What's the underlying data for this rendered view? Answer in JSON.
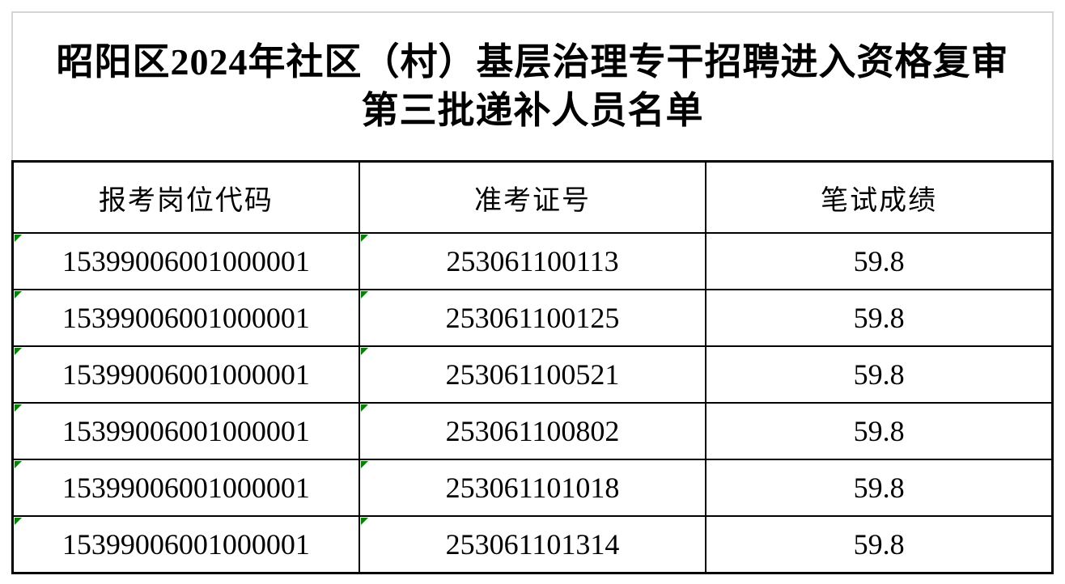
{
  "document": {
    "title_line1": "昭阳区2024年社区（村）基层治理专干招聘进入资格复审",
    "title_line2": "第三批递补人员名单"
  },
  "table": {
    "headers": [
      "报考岗位代码",
      "准考证号",
      "笔试成绩"
    ],
    "rows": [
      [
        "15399006001000001",
        "253061100113",
        "59.8"
      ],
      [
        "15399006001000001",
        "253061100125",
        "59.8"
      ],
      [
        "15399006001000001",
        "253061100521",
        "59.8"
      ],
      [
        "15399006001000001",
        "253061100802",
        "59.8"
      ],
      [
        "15399006001000001",
        "253061101018",
        "59.8"
      ],
      [
        "15399006001000001",
        "253061101314",
        "59.8"
      ]
    ],
    "number_stored_as_text_flag_columns": [
      0,
      1
    ]
  },
  "icons": {
    "number_as_text_flag": "green-corner-triangle"
  },
  "colors": {
    "flag_green": "#0a800a",
    "table_border": "#000000",
    "title_border_gray": "#d5d5d5",
    "background": "#ffffff",
    "text": "#000000"
  }
}
